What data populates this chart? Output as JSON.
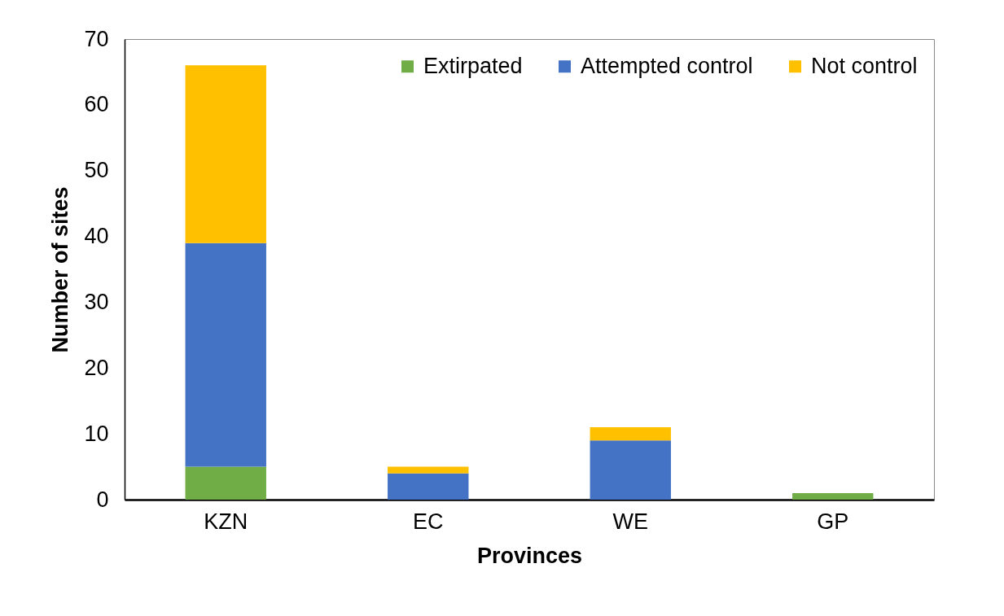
{
  "chart_data": {
    "type": "bar",
    "stacked": true,
    "xlabel": "Provinces",
    "ylabel": "Number of sites",
    "categories": [
      "KZN",
      "EC",
      "WE",
      "GP"
    ],
    "series": [
      {
        "name": "Extirpated",
        "color": "#70ad47",
        "values": [
          5,
          0,
          0,
          1
        ]
      },
      {
        "name": "Attempted control",
        "color": "#4472c4",
        "values": [
          34,
          4,
          9,
          0
        ]
      },
      {
        "name": "Not control",
        "color": "#ffc000",
        "values": [
          27,
          1,
          2,
          0
        ]
      }
    ],
    "ylim": [
      0,
      70
    ],
    "yticks": [
      0,
      10,
      20,
      30,
      40,
      50,
      60,
      70
    ],
    "legend": "top right"
  }
}
